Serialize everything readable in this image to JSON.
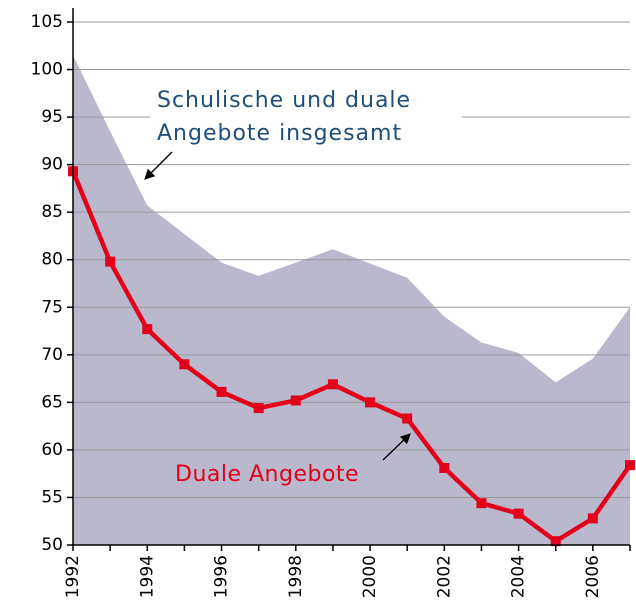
{
  "chart_data": {
    "type": "line",
    "annotations": [
      "Schulische und duale",
      "Angebote insgesamt",
      "Duale Angebote"
    ],
    "x": [
      1992,
      1993,
      1994,
      1995,
      1996,
      1997,
      1998,
      1999,
      2000,
      2001,
      2002,
      2003,
      2004,
      2005,
      2006,
      2007
    ],
    "series": [
      {
        "type": "area",
        "color": "#b9b8cd",
        "values": [
          101.5,
          93.5,
          85.7,
          82.7,
          79.7,
          78.3,
          79.7,
          81.1,
          79.6,
          78.1,
          74,
          71.3,
          70.2,
          67.1,
          69.6,
          75
        ]
      },
      {
        "type": "line",
        "color": "#e2001a",
        "values": [
          89.3,
          79.8,
          72.7,
          69,
          66.1,
          64.4,
          65.2,
          66.9,
          65,
          63.3,
          58.1,
          54.4,
          53.3,
          50.4,
          52.8,
          58.4
        ]
      }
    ],
    "xlim": [
      1992,
      2007
    ],
    "xticks": [
      1992,
      1994,
      1996,
      1998,
      2000,
      2002,
      2004,
      2006
    ],
    "ylim": [
      50,
      105
    ],
    "yticks": [
      50,
      55,
      60,
      65,
      70,
      75,
      80,
      85,
      90,
      95,
      100,
      105
    ],
    "grid": true
  }
}
